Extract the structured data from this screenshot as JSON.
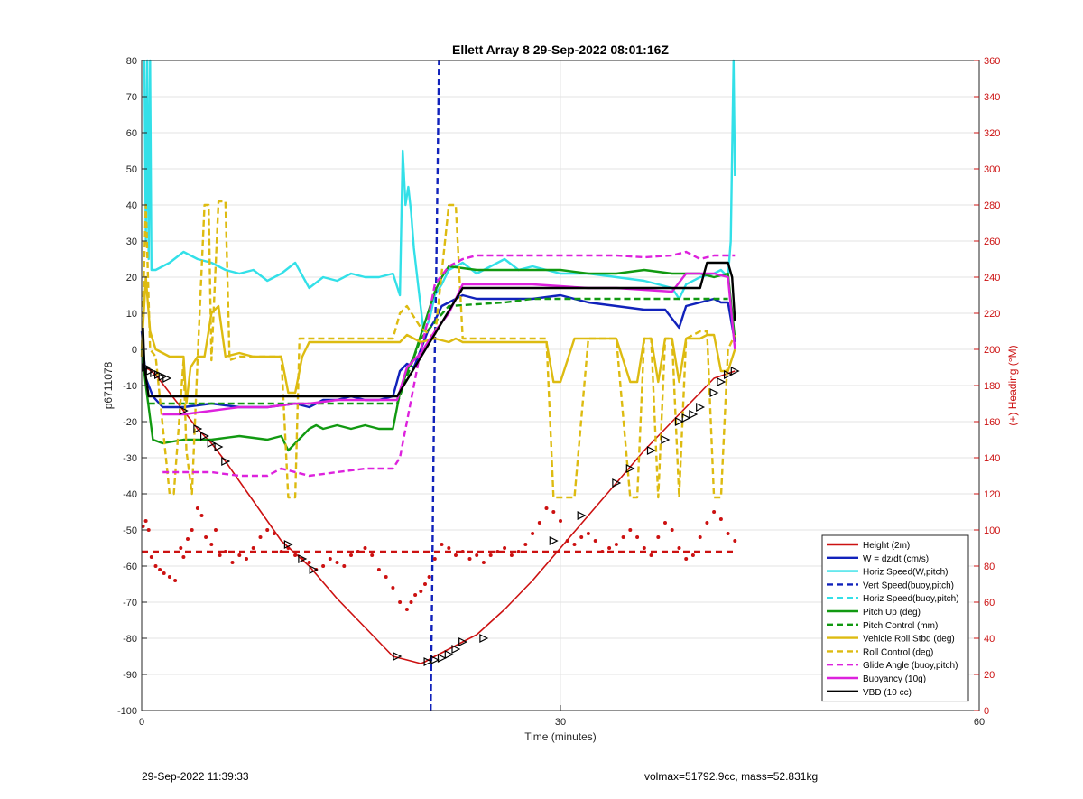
{
  "chart_data": {
    "type": "line",
    "title": "Ellett Array 8 29-Sep-2022 08:01:16Z",
    "xlabel": "Time (minutes)",
    "ylabel": "p6711078",
    "ylabel_right": "(+) Heading (°M)",
    "xlim": [
      0,
      60
    ],
    "ylim": [
      -100,
      80
    ],
    "ylim_right": [
      0,
      360
    ],
    "xticks": [
      "0",
      "30",
      "60"
    ],
    "yticks": [
      "-100",
      "-90",
      "-80",
      "-70",
      "-60",
      "-50",
      "-40",
      "-30",
      "-20",
      "-10",
      "0",
      "10",
      "20",
      "30",
      "40",
      "50",
      "60",
      "70",
      "80"
    ],
    "yticks_right": [
      "0",
      "20",
      "40",
      "60",
      "80",
      "100",
      "120",
      "140",
      "160",
      "180",
      "200",
      "220",
      "240",
      "260",
      "280",
      "300",
      "320",
      "340",
      "360"
    ],
    "grid": true,
    "legend_position": "bottom-right",
    "legend": [
      {
        "label": "Height (2m)",
        "color": "#cc1111",
        "style": "solid"
      },
      {
        "label": "W = dz/dt (cm/s)",
        "color": "#1122bb",
        "style": "solid"
      },
      {
        "label": "Horiz Speed(W,pitch)",
        "color": "#33e0e8",
        "style": "solid"
      },
      {
        "label": "Vert Speed(buoy,pitch)",
        "color": "#1122bb",
        "style": "dashed"
      },
      {
        "label": "Horiz Speed(buoy,pitch)",
        "color": "#33e0e8",
        "style": "dashed"
      },
      {
        "label": "Pitch Up (deg)",
        "color": "#119911",
        "style": "solid"
      },
      {
        "label": "Pitch Control (mm)",
        "color": "#119911",
        "style": "dashed"
      },
      {
        "label": "Vehicle Roll Stbd (deg)",
        "color": "#ddbb11",
        "style": "solid"
      },
      {
        "label": "Roll Control (deg)",
        "color": "#ddbb11",
        "style": "dashed"
      },
      {
        "label": "Glide Angle (buoy,pitch)",
        "color": "#dd22dd",
        "style": "dashed"
      },
      {
        "label": "Buoyancy (10g)",
        "color": "#dd22dd",
        "style": "solid"
      },
      {
        "label": "VBD (10 cc)",
        "color": "#000000",
        "style": "solid"
      }
    ],
    "series": [
      {
        "name": "Height (2m)",
        "axis": "left",
        "color": "#cc1111",
        "dash": "",
        "x": [
          0,
          0.5,
          1,
          2,
          3,
          4,
          5,
          6,
          8,
          10,
          12,
          14,
          16,
          18,
          18.5,
          19,
          20,
          20.3,
          21,
          22,
          23,
          24,
          26,
          28,
          30,
          32,
          34,
          36,
          38,
          40,
          41,
          42.5
        ],
        "y": [
          -5,
          -5.5,
          -7,
          -12,
          -17,
          -22,
          -26,
          -31,
          -42,
          -53,
          -60,
          -69,
          -77,
          -85,
          -85.5,
          -86,
          -87,
          -86.5,
          -85,
          -83,
          -81,
          -79,
          -72,
          -64,
          -55,
          -46,
          -37,
          -28,
          -20,
          -12,
          -8,
          -6
        ]
      },
      {
        "name": "W = dz/dt (cm/s)",
        "axis": "left",
        "color": "#1122bb",
        "dash": "",
        "x": [
          0,
          0.3,
          0.8,
          1.5,
          3,
          5,
          7,
          9,
          11,
          12,
          13,
          14,
          15,
          16,
          17,
          18,
          18.5,
          19,
          19.5,
          20,
          20.5,
          21,
          21.5,
          22,
          23,
          24,
          26,
          28,
          30,
          32,
          34,
          36,
          37.5,
          38.5,
          39,
          40,
          41,
          41.5,
          42,
          42.5
        ],
        "y": [
          5,
          -8,
          -13,
          -16,
          -16,
          -15,
          -16,
          -16,
          -15,
          -16,
          -14,
          -14,
          -13,
          -14,
          -14,
          -13,
          -6,
          -4,
          -5,
          0,
          5,
          8,
          12,
          13,
          15,
          14,
          14,
          14,
          15,
          13,
          12,
          11,
          11,
          6,
          12,
          13,
          14,
          13,
          13,
          2
        ]
      },
      {
        "name": "Horiz Speed(W,pitch)",
        "axis": "left",
        "color": "#33e0e8",
        "dash": "",
        "x": [
          0.2,
          0.3,
          0.4,
          0.5,
          0.6,
          0.7,
          1,
          2,
          3,
          4,
          5,
          6,
          7,
          8,
          9,
          10,
          11,
          12,
          13,
          14,
          15,
          16,
          17,
          18,
          18.5,
          18.7,
          18.9,
          19.1,
          19.3,
          19.5,
          19.8,
          20.2,
          20.6,
          21,
          21.5,
          22,
          23,
          24,
          25,
          26,
          27,
          28,
          30,
          32,
          34,
          36,
          37,
          38,
          38.5,
          39,
          40,
          41,
          41.5,
          42,
          42.2,
          42.4,
          42.5
        ],
        "y": [
          80,
          30,
          80,
          25,
          80,
          22,
          22,
          24,
          27,
          25,
          24,
          22,
          21,
          22,
          19,
          21,
          24,
          17,
          20,
          19,
          21,
          20,
          20,
          21,
          15,
          55,
          40,
          45,
          38,
          28,
          18,
          5,
          8,
          15,
          18,
          22,
          24,
          21,
          23,
          25,
          22,
          23,
          21,
          21,
          20,
          19,
          18,
          17,
          14,
          18,
          20,
          21,
          22,
          20,
          30,
          80,
          48
        ]
      },
      {
        "name": "Vert Speed(buoy,pitch)",
        "axis": "left",
        "color": "#1122bb",
        "dash": "7,4",
        "x": [
          20.7,
          20.8,
          20.9,
          21.0,
          21.1,
          21.2,
          21.3
        ],
        "y": [
          -100,
          -70,
          -30,
          0,
          20,
          50,
          80
        ]
      },
      {
        "name": "Pitch Up (deg)",
        "axis": "left",
        "color": "#119911",
        "dash": "",
        "x": [
          0,
          0.3,
          0.8,
          1.5,
          3,
          5,
          7,
          9,
          10,
          10.5,
          11,
          11.5,
          12,
          12.5,
          13,
          14,
          15,
          16,
          17,
          18,
          18.5,
          19,
          19.5,
          20,
          20.5,
          21,
          21.5,
          22,
          24,
          26,
          28,
          30,
          32,
          34,
          36,
          38,
          40,
          41,
          42,
          42.5
        ],
        "y": [
          0,
          -10,
          -25,
          -26,
          -25,
          -25,
          -24,
          -25,
          -24,
          -28,
          -26,
          -24,
          -22,
          -21,
          -22,
          -21,
          -22,
          -21,
          -22,
          -22,
          -12,
          -6,
          -2,
          4,
          10,
          16,
          20,
          23,
          22,
          22,
          22,
          22,
          21,
          21,
          22,
          21,
          21,
          20,
          21,
          3
        ]
      },
      {
        "name": "Pitch Control (mm)",
        "axis": "left",
        "color": "#119911",
        "dash": "7,4",
        "x": [
          0.5,
          2,
          4,
          6,
          8,
          10,
          12,
          14,
          16,
          18,
          18.3,
          20,
          22,
          24,
          26,
          28,
          30,
          32,
          34,
          36,
          38,
          40,
          42
        ],
        "y": [
          -15,
          -15,
          -15,
          -15,
          -15,
          -15,
          -15,
          -15,
          -15,
          -15,
          -15,
          3,
          12,
          12.5,
          13,
          14,
          14,
          14,
          14,
          14,
          14,
          14,
          14
        ]
      },
      {
        "name": "Vehicle Roll Stbd (deg)",
        "axis": "left",
        "color": "#ddbb11",
        "dash": "",
        "x": [
          0,
          0.3,
          0.6,
          1,
          2,
          2.5,
          3,
          3.2,
          3.5,
          4,
          4.5,
          5,
          5.5,
          6,
          7,
          8,
          9,
          10,
          10.5,
          11,
          11.5,
          12,
          14,
          16,
          18,
          18.5,
          19,
          20,
          21,
          22,
          22.5,
          23,
          24,
          26,
          28,
          29,
          29.5,
          30,
          31,
          32,
          33,
          34,
          35,
          35.5,
          36,
          36.5,
          37,
          37.5,
          38,
          38.5,
          39,
          40,
          40.5,
          41,
          41.5,
          42,
          42.5
        ],
        "y": [
          0,
          20,
          5,
          0,
          -2,
          -2,
          -2,
          -15,
          -5,
          -2,
          -2,
          10,
          12,
          -2,
          -1,
          -2,
          -2,
          -2,
          -12,
          -12,
          -2,
          2,
          2,
          2,
          2,
          2,
          4,
          2,
          3,
          2,
          3,
          2,
          2,
          2,
          2,
          2,
          -9,
          -9,
          3,
          3,
          3,
          3,
          -9,
          -9,
          3,
          3,
          -9,
          3,
          3,
          -9,
          3,
          3,
          4,
          4,
          -6,
          -6,
          0
        ]
      },
      {
        "name": "Roll Control (deg)",
        "axis": "left",
        "color": "#ddbb11",
        "dash": "7,4",
        "x": [
          0,
          0.3,
          0.6,
          1,
          2,
          2.3,
          3,
          3.2,
          3.6,
          4,
          4.5,
          4.8,
          5,
          5.5,
          6,
          6.3,
          7,
          9,
          10,
          10.5,
          11,
          11.3,
          12,
          13,
          15,
          17,
          18,
          18.5,
          19,
          20,
          21,
          22,
          22.5,
          23,
          24,
          26,
          28,
          29,
          29.5,
          31,
          32,
          33,
          34,
          35,
          35.5,
          36,
          36.5,
          37,
          37.5,
          38,
          38.5,
          39,
          40,
          40.5,
          41,
          41.5,
          42,
          42.5
        ],
        "y": [
          -2,
          40,
          0,
          -2,
          -40,
          -40,
          -3,
          -28,
          -40,
          -3,
          40,
          40,
          -3,
          41,
          41,
          -3,
          -2,
          -2,
          -2,
          -41,
          -41,
          3,
          3,
          3,
          3,
          3,
          3,
          10,
          12,
          6,
          3,
          40,
          40,
          3,
          3,
          3,
          3,
          3,
          -41,
          -41,
          3,
          3,
          3,
          -41,
          -41,
          3,
          3,
          -41,
          3,
          3,
          -41,
          3,
          5,
          5,
          -41,
          -41,
          0,
          4
        ]
      },
      {
        "name": "Glide Angle (buoy,pitch)",
        "axis": "left",
        "color": "#dd22dd",
        "dash": "7,4",
        "x": [
          1.5,
          3,
          5,
          7,
          9,
          10,
          12,
          14,
          16,
          18,
          18.5,
          19,
          19.5,
          20,
          20.5,
          21,
          22,
          23,
          24,
          26,
          28,
          30,
          32,
          34,
          36,
          38,
          39,
          40,
          41,
          42,
          42.5
        ],
        "y": [
          -34,
          -34,
          -34,
          -35,
          -35,
          -33,
          -35,
          -34,
          -33,
          -33,
          -30,
          -20,
          -10,
          0,
          8,
          18,
          23,
          25,
          26,
          26,
          26,
          26,
          26,
          26,
          25.5,
          26,
          27,
          25,
          26,
          26,
          26
        ]
      },
      {
        "name": "Buoyancy (10g)",
        "axis": "left",
        "color": "#dd22dd",
        "dash": "",
        "x": [
          1.5,
          3,
          5,
          7,
          9,
          11,
          12,
          14,
          16,
          18,
          18.3,
          19,
          20,
          21,
          22,
          23,
          26,
          28,
          30,
          32,
          34,
          36,
          38,
          39,
          40,
          41,
          42,
          42.5
        ],
        "y": [
          -18,
          -18,
          -17,
          -16,
          -16,
          -15,
          -15,
          -14,
          -14,
          -14,
          -14,
          -5,
          -1,
          5,
          10,
          18,
          18,
          18,
          17.5,
          17,
          17,
          16.5,
          16,
          21,
          21,
          21,
          20,
          0
        ]
      },
      {
        "name": "VBD (10 cc)",
        "axis": "left",
        "color": "#000000",
        "dash": "",
        "x": [
          0.1,
          0.2,
          0.5,
          2,
          4,
          6,
          8,
          10,
          12,
          14,
          16,
          18,
          18.3,
          23,
          40,
          40.5,
          42,
          42.3,
          42.5
        ],
        "y": [
          6,
          -5,
          -13,
          -13,
          -13,
          -13,
          -13,
          -13,
          -13,
          -13,
          -13,
          -13,
          -13,
          17,
          17,
          24,
          24,
          20,
          8
        ]
      },
      {
        "name": "Heading",
        "axis": "right",
        "color": "#cc1111",
        "dash": "7,5",
        "x": [
          0,
          42.5
        ],
        "y": [
          88,
          88
        ]
      }
    ],
    "markers": {
      "series": "Height (2m)",
      "symbol": "triangle",
      "x": [
        0.3,
        0.6,
        0.9,
        1.2,
        1.5,
        1.8,
        3,
        4,
        4.5,
        5,
        5.5,
        6,
        10.5,
        11.5,
        12.3,
        18.3,
        20.5,
        21,
        21.5,
        22,
        22.5,
        23,
        24.5,
        29.5,
        31.5,
        34,
        35,
        36.5,
        37.5,
        38.5,
        39,
        39.5,
        40,
        41,
        41.5,
        42,
        42.5
      ],
      "y": [
        -5,
        -6,
        -6.5,
        -7,
        -7.5,
        -8,
        -17,
        -22,
        -24,
        -26,
        -27,
        -31,
        -54,
        -58,
        -61,
        -85,
        -86.5,
        -86,
        -85.5,
        -84.5,
        -83,
        -81,
        -80,
        -53,
        -46,
        -37,
        -33,
        -28,
        -25,
        -20,
        -19,
        -18,
        -16,
        -12,
        -9,
        -7,
        -6
      ]
    },
    "heading_dots": {
      "axis": "right",
      "color": "#cc1111",
      "x": [
        0.1,
        0.3,
        0.5,
        0.7,
        1,
        1.3,
        1.6,
        2,
        2.4,
        2.8,
        3,
        3.3,
        3.6,
        4,
        4.3,
        4.6,
        5,
        5.3,
        5.6,
        6,
        6.5,
        7,
        7.5,
        8,
        8.5,
        9,
        9.5,
        10,
        10.5,
        11,
        11.5,
        12,
        12.5,
        13,
        13.5,
        14,
        14.5,
        15,
        15.5,
        16,
        16.5,
        17,
        17.5,
        18,
        18.5,
        19,
        19.3,
        19.6,
        20,
        20.3,
        20.6,
        21,
        21.5,
        22,
        22.5,
        23,
        23.5,
        24,
        24.5,
        25,
        25.5,
        26,
        26.5,
        27,
        27.5,
        28,
        28.5,
        29,
        29.5,
        30,
        30.5,
        31,
        31.5,
        32,
        32.5,
        33,
        33.5,
        34,
        34.5,
        35,
        35.5,
        36,
        36.5,
        37,
        37.5,
        38,
        38.5,
        39,
        39.5,
        40,
        40.5,
        41,
        41.5,
        42,
        42.5
      ],
      "y": [
        102,
        105,
        100,
        85,
        80,
        78,
        76,
        74,
        72,
        90,
        85,
        95,
        100,
        112,
        108,
        96,
        92,
        100,
        86,
        88,
        82,
        86,
        84,
        90,
        96,
        100,
        98,
        88,
        90,
        86,
        84,
        82,
        78,
        80,
        84,
        82,
        80,
        86,
        88,
        90,
        86,
        78,
        74,
        68,
        60,
        56,
        60,
        64,
        66,
        70,
        74,
        84,
        92,
        90,
        86,
        88,
        84,
        86,
        82,
        86,
        88,
        90,
        86,
        88,
        92,
        98,
        104,
        112,
        110,
        105,
        94,
        92,
        96,
        98,
        94,
        88,
        90,
        92,
        96,
        100,
        96,
        90,
        86,
        96,
        104,
        100,
        90,
        84,
        86,
        96,
        104,
        110,
        106,
        98,
        94
      ]
    }
  },
  "footer": {
    "left": "29-Sep-2022 11:39:33",
    "right": "volmax=51792.9cc, mass=52.831kg"
  }
}
